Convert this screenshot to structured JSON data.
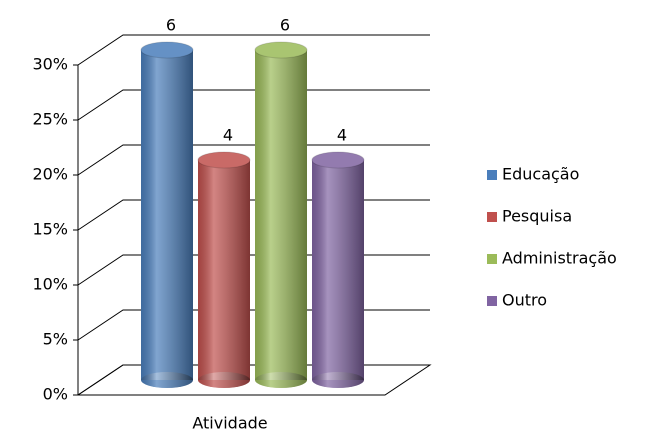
{
  "chart_data": {
    "type": "bar3d",
    "x_label": "Atividade",
    "categories": [
      "Educação",
      "Pesquisa",
      "Administração",
      "Outro"
    ],
    "values": [
      30,
      20,
      30,
      20
    ],
    "counts": [
      6,
      4,
      6,
      4
    ],
    "colors": [
      "#4a7ebb",
      "#c0504d",
      "#9bbb59",
      "#8064a2"
    ],
    "ylim": [
      0,
      30
    ],
    "yticks": [
      {
        "value": 0,
        "label": "0%"
      },
      {
        "value": 5,
        "label": "5%"
      },
      {
        "value": 10,
        "label": "10%"
      },
      {
        "value": 15,
        "label": "15%"
      },
      {
        "value": 20,
        "label": "20%"
      },
      {
        "value": 25,
        "label": "25%"
      },
      {
        "value": 30,
        "label": "30%"
      }
    ],
    "grid": true,
    "legend": "right"
  }
}
